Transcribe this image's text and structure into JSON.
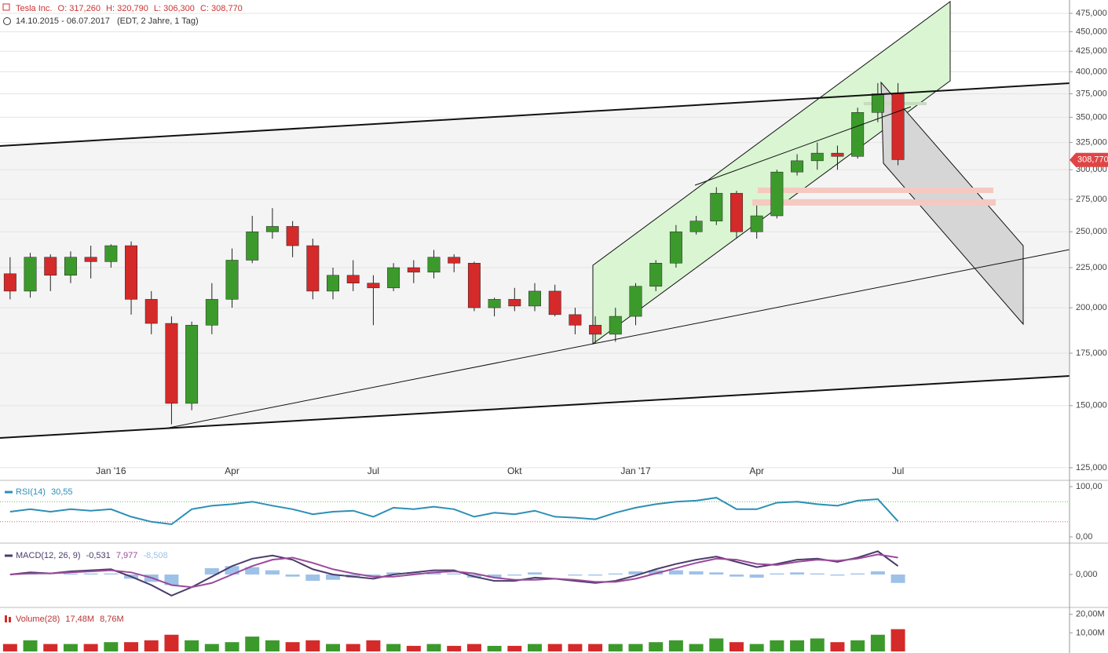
{
  "chart_data": [
    {
      "type": "candlestick",
      "title": "Tesla Inc.",
      "readouts": [
        "O: 317,260",
        "H: 320,790",
        "L: 306,300",
        "C: 308,770"
      ],
      "subtitle": "14.10.2015 - 06.07.2017",
      "note": "(EDT, 2 Jahre, 1 Tag)",
      "categories": [
        null,
        null,
        null,
        null,
        null,
        "Jan '16",
        null,
        null,
        null,
        null,
        null,
        "Apr",
        null,
        null,
        null,
        null,
        null,
        null,
        "Jul",
        null,
        null,
        null,
        null,
        null,
        null,
        "Okt",
        null,
        null,
        null,
        null,
        null,
        "Jan '17",
        null,
        null,
        null,
        null,
        null,
        "Apr",
        null,
        null,
        null,
        null,
        null,
        null,
        "Jul"
      ],
      "open": [
        221,
        210,
        232,
        220,
        232,
        229,
        240,
        205,
        191,
        151,
        190,
        205,
        230,
        250,
        254,
        240,
        210,
        220,
        215,
        212,
        225,
        222,
        232,
        228,
        200,
        205,
        201,
        210,
        196,
        190,
        185,
        195,
        213,
        228,
        250,
        258,
        280,
        250,
        262,
        298,
        308,
        315,
        312,
        355,
        375
      ],
      "high": [
        232,
        235,
        234,
        236,
        240,
        241,
        243,
        210,
        195,
        192,
        215,
        238,
        262,
        268,
        258,
        245,
        225,
        230,
        220,
        228,
        230,
        237,
        234,
        229,
        206,
        212,
        215,
        214,
        200,
        195,
        200,
        215,
        230,
        255,
        262,
        285,
        282,
        270,
        300,
        314,
        325,
        322,
        360,
        387,
        387
      ],
      "low": [
        205,
        206,
        210,
        215,
        218,
        225,
        196,
        185,
        142,
        148,
        185,
        200,
        228,
        245,
        232,
        205,
        205,
        210,
        190,
        210,
        215,
        218,
        222,
        198,
        195,
        198,
        198,
        195,
        185,
        180,
        181,
        190,
        210,
        225,
        248,
        255,
        245,
        245,
        260,
        295,
        300,
        300,
        310,
        345,
        304
      ],
      "close": [
        210,
        232,
        220,
        232,
        229,
        240,
        205,
        191,
        151,
        190,
        205,
        230,
        250,
        254,
        240,
        210,
        220,
        215,
        212,
        225,
        222,
        232,
        228,
        200,
        205,
        201,
        210,
        196,
        190,
        185,
        195,
        213,
        228,
        250,
        258,
        280,
        250,
        262,
        298,
        308,
        315,
        312,
        355,
        375,
        309
      ],
      "up_color": "#3c9a2c",
      "down_color": "#d42a2a",
      "log": true,
      "grid": true,
      "ylim": [
        121,
        494
      ],
      "yticks": [
        {
          "value": 125,
          "label": "125,000"
        },
        {
          "value": 150,
          "label": "150,000"
        },
        {
          "value": 175,
          "label": "175,000"
        },
        {
          "value": 200,
          "label": "200,000"
        },
        {
          "value": 225,
          "label": "225,000"
        },
        {
          "value": 250,
          "label": "250,000"
        },
        {
          "value": 275,
          "label": "275,000"
        },
        {
          "value": 300,
          "label": "300,000"
        },
        {
          "value": 325,
          "label": "325,000"
        },
        {
          "value": 350,
          "label": "350,000"
        },
        {
          "value": 375,
          "label": "375,000"
        },
        {
          "value": 400,
          "label": "400,000"
        },
        {
          "value": 425,
          "label": "425,000"
        },
        {
          "value": 450,
          "label": "450,000"
        },
        {
          "value": 475,
          "label": "475,000"
        }
      ],
      "last": {
        "value": 308.77,
        "label": "308,770"
      }
    },
    {
      "type": "line",
      "title": "RSI(14)",
      "readouts": [
        "30,55"
      ],
      "series": [
        {
          "color": "#2c8fb5",
          "values": [
            50,
            55,
            50,
            55,
            52,
            55,
            40,
            30,
            25,
            55,
            62,
            65,
            70,
            62,
            55,
            45,
            50,
            52,
            40,
            58,
            55,
            60,
            55,
            40,
            48,
            45,
            52,
            40,
            38,
            35,
            48,
            58,
            65,
            70,
            72,
            78,
            55,
            55,
            68,
            70,
            65,
            62,
            72,
            75,
            31
          ]
        }
      ],
      "levels": [
        {
          "value": 70,
          "color": "#6cc05c"
        },
        {
          "value": 30,
          "color": "#e06060"
        }
      ],
      "ylim": [
        0,
        100
      ],
      "yticks": [
        {
          "value": 100,
          "label": "100,00"
        },
        {
          "value": 0,
          "label": "0,00"
        }
      ]
    },
    {
      "type": "line",
      "title": "MACD(12, 26, 9)",
      "readouts": [
        "-0,531",
        "7,977",
        "-8,508"
      ],
      "series": [
        {
          "color": "#9ec1e8",
          "style": "bar",
          "values": [
            0,
            1,
            0,
            1,
            1,
            1,
            -4,
            -7,
            -10,
            0,
            6,
            8,
            7,
            4,
            -2,
            -6,
            -5,
            -3,
            -2,
            2,
            2,
            2,
            1,
            -3,
            -3,
            -1,
            2,
            0,
            -1,
            -1,
            1,
            3,
            4,
            4,
            3,
            2,
            -2,
            -3,
            1,
            2,
            1,
            -1,
            1,
            3,
            -8
          ]
        },
        {
          "color": "#4b3b6b",
          "values": [
            0,
            2,
            1,
            3,
            4,
            5,
            -2,
            -10,
            -20,
            -12,
            -2,
            8,
            15,
            18,
            14,
            5,
            0,
            -2,
            -4,
            0,
            2,
            4,
            4,
            -2,
            -6,
            -6,
            -3,
            -4,
            -6,
            -8,
            -6,
            -1,
            5,
            10,
            14,
            17,
            12,
            7,
            10,
            14,
            15,
            12,
            16,
            22,
            8
          ]
        },
        {
          "color": "#9a4a9a",
          "values": [
            0,
            1,
            1,
            2,
            3,
            4,
            2,
            -3,
            -10,
            -12,
            -8,
            0,
            8,
            14,
            16,
            11,
            5,
            1,
            -2,
            -2,
            0,
            2,
            3,
            1,
            -3,
            -5,
            -5,
            -4,
            -5,
            -7,
            -7,
            -4,
            1,
            6,
            11,
            15,
            14,
            10,
            9,
            12,
            14,
            13,
            15,
            19,
            16
          ]
        }
      ],
      "ylim": [
        -26,
        26
      ],
      "yticks": [
        {
          "value": 0,
          "label": "0,000"
        }
      ]
    },
    {
      "type": "bar",
      "title": "Volume(28)",
      "readouts": [
        "17,48M",
        "8,76M"
      ],
      "values": [
        4,
        6,
        4,
        4,
        4,
        5,
        5,
        6,
        9,
        6,
        4,
        5,
        8,
        6,
        5,
        6,
        4,
        4,
        6,
        4,
        3,
        4,
        3,
        4,
        3,
        3,
        4,
        4,
        4,
        4,
        4,
        4,
        5,
        6,
        4,
        7,
        5,
        4,
        6,
        6,
        7,
        5,
        6,
        9,
        12
      ],
      "ylim": [
        0,
        22
      ],
      "yticks": [
        {
          "value": 20,
          "label": "20,00M"
        },
        {
          "value": 10,
          "label": "10,00M"
        }
      ]
    }
  ]
}
